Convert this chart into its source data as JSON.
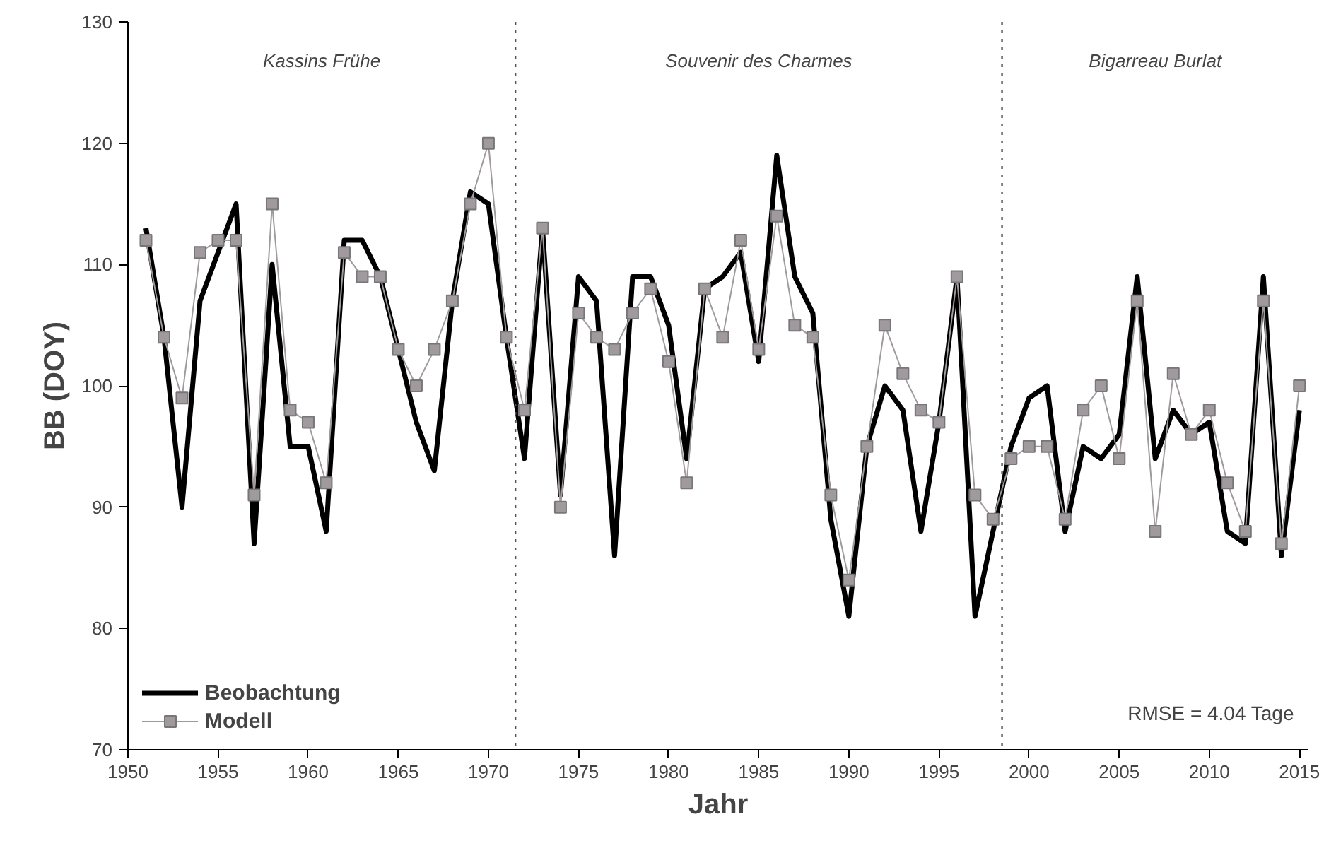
{
  "chart_data": {
    "type": "line",
    "xlabel": "Jahr",
    "ylabel": "BB (DOY)",
    "x": [
      1951,
      1952,
      1953,
      1954,
      1955,
      1956,
      1957,
      1958,
      1959,
      1960,
      1961,
      1962,
      1963,
      1964,
      1965,
      1966,
      1967,
      1968,
      1969,
      1970,
      1971,
      1972,
      1973,
      1974,
      1975,
      1976,
      1977,
      1978,
      1979,
      1980,
      1981,
      1982,
      1983,
      1984,
      1985,
      1986,
      1987,
      1988,
      1989,
      1990,
      1991,
      1992,
      1993,
      1994,
      1995,
      1996,
      1997,
      1998,
      1999,
      2000,
      2001,
      2002,
      2003,
      2004,
      2005,
      2006,
      2007,
      2008,
      2009,
      2010,
      2011,
      2012,
      2013,
      2014,
      2015
    ],
    "series": [
      {
        "name": "Beobachtung",
        "color": "#000000",
        "marker": "none",
        "values": [
          113,
          104,
          90,
          107,
          111,
          115,
          87,
          110,
          95,
          95,
          88,
          112,
          112,
          109,
          103,
          97,
          93,
          107,
          116,
          115,
          104,
          94,
          113,
          91,
          109,
          107,
          86,
          109,
          109,
          105,
          94,
          108,
          109,
          111,
          102,
          119,
          109,
          106,
          89,
          81,
          95,
          100,
          98,
          88,
          97,
          109,
          81,
          88,
          95,
          99,
          100,
          88,
          95,
          94,
          96,
          109,
          94,
          98,
          96,
          97,
          88,
          87,
          109,
          86,
          98
        ]
      },
      {
        "name": "Modell",
        "color": "#a09a9e",
        "marker": "square",
        "values": [
          112,
          104,
          99,
          111,
          112,
          112,
          91,
          115,
          98,
          97,
          92,
          111,
          109,
          109,
          103,
          100,
          103,
          107,
          115,
          120,
          104,
          98,
          113,
          90,
          106,
          104,
          103,
          106,
          108,
          102,
          92,
          108,
          104,
          112,
          103,
          114,
          105,
          104,
          91,
          84,
          95,
          105,
          101,
          98,
          97,
          109,
          91,
          89,
          94,
          95,
          95,
          89,
          98,
          100,
          94,
          107,
          88,
          101,
          96,
          98,
          92,
          88,
          107,
          87,
          100
        ]
      }
    ],
    "xlim": [
      1950,
      2015.5
    ],
    "xticks": [
      1950,
      1955,
      1960,
      1965,
      1970,
      1975,
      1980,
      1985,
      1990,
      1995,
      2000,
      2005,
      2010,
      2015
    ],
    "ylim": [
      70,
      130
    ],
    "yticks": [
      70,
      80,
      90,
      100,
      110,
      120,
      130
    ],
    "ref_lines": [
      {
        "axis": "x",
        "value": 1971.5,
        "color": "#555555",
        "line_style": "dotted"
      },
      {
        "axis": "x",
        "value": 1998.5,
        "color": "#555555",
        "line_style": "dotted"
      }
    ],
    "annotations": [
      "Kassins Frühe",
      "Souvenir des Charmes",
      "Bigarreau Burlat",
      "RMSE = 4.04 Tage"
    ],
    "legend": "bottom left",
    "grid": false
  }
}
